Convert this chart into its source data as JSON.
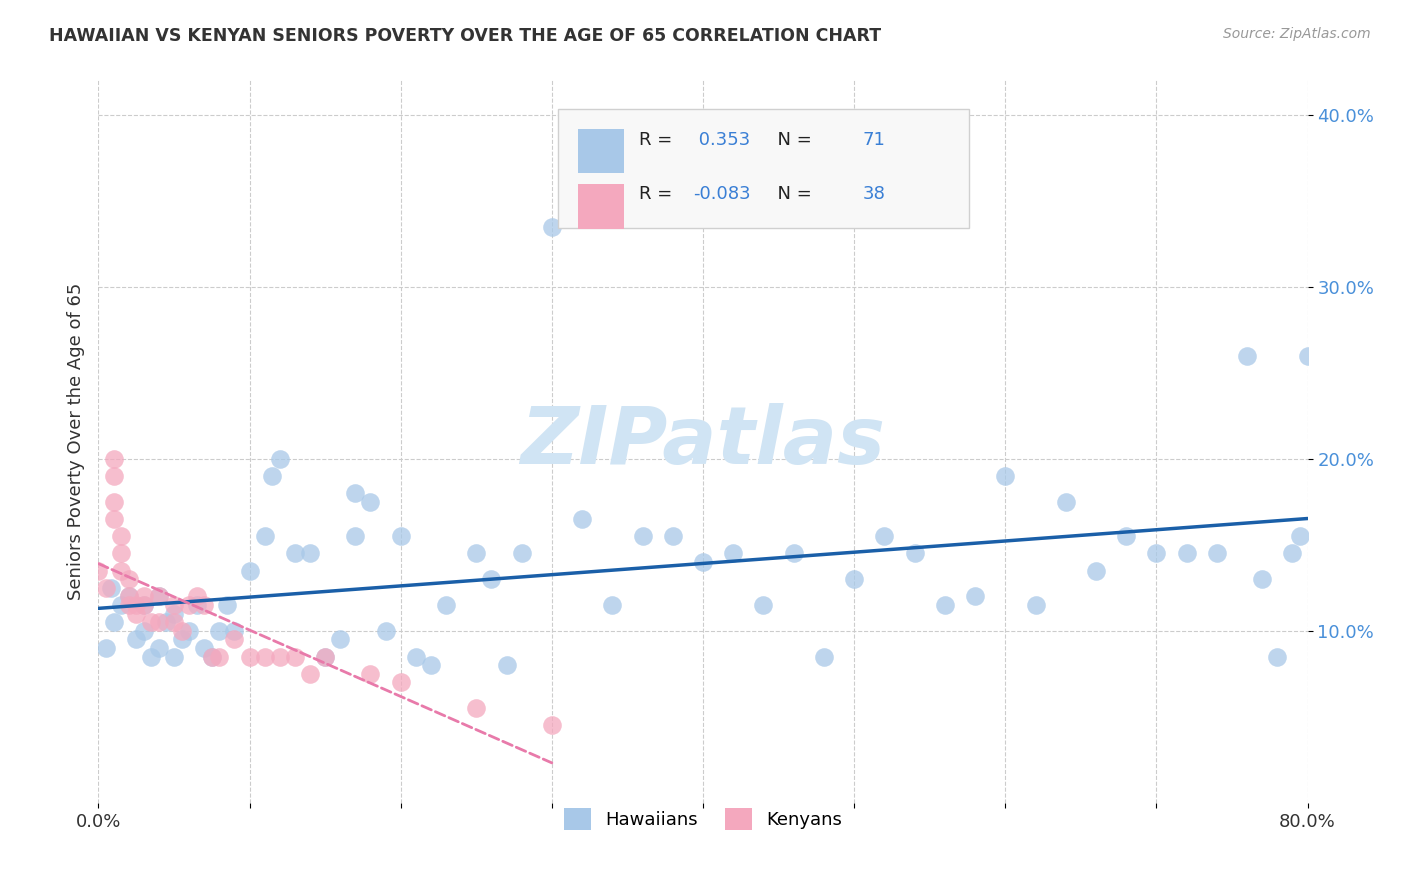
{
  "title": "HAWAIIAN VS KENYAN SENIORS POVERTY OVER THE AGE OF 65 CORRELATION CHART",
  "source": "Source: ZipAtlas.com",
  "ylabel": "Seniors Poverty Over the Age of 65",
  "xlim": [
    0,
    0.8
  ],
  "ylim": [
    0,
    0.42
  ],
  "xtick_positions": [
    0.0,
    0.1,
    0.2,
    0.3,
    0.4,
    0.5,
    0.6,
    0.7,
    0.8
  ],
  "xticklabels": [
    "0.0%",
    "",
    "",
    "",
    "",
    "",
    "",
    "",
    "80.0%"
  ],
  "ytick_positions": [
    0.1,
    0.2,
    0.3,
    0.4
  ],
  "ytick_labels": [
    "10.0%",
    "20.0%",
    "30.0%",
    "40.0%"
  ],
  "R_hawaiian": 0.353,
  "N_hawaiian": 71,
  "R_kenyan": -0.083,
  "N_kenyan": 38,
  "hawaiian_color": "#a8c8e8",
  "kenyan_color": "#f4a8be",
  "trend_hawaiian_color": "#1a5fa8",
  "trend_kenyan_color": "#e87aaa",
  "watermark_text": "ZIPatlas",
  "watermark_color": "#d0e4f4",
  "hawaiians_x": [
    0.005,
    0.008,
    0.01,
    0.015,
    0.02,
    0.025,
    0.03,
    0.03,
    0.035,
    0.04,
    0.04,
    0.045,
    0.05,
    0.05,
    0.055,
    0.06,
    0.065,
    0.07,
    0.075,
    0.08,
    0.085,
    0.09,
    0.1,
    0.11,
    0.115,
    0.12,
    0.13,
    0.14,
    0.15,
    0.16,
    0.17,
    0.17,
    0.18,
    0.19,
    0.2,
    0.21,
    0.22,
    0.23,
    0.25,
    0.26,
    0.27,
    0.28,
    0.3,
    0.32,
    0.34,
    0.36,
    0.38,
    0.4,
    0.42,
    0.44,
    0.46,
    0.48,
    0.5,
    0.52,
    0.54,
    0.56,
    0.58,
    0.6,
    0.62,
    0.64,
    0.66,
    0.68,
    0.7,
    0.72,
    0.74,
    0.76,
    0.77,
    0.78,
    0.79,
    0.795,
    0.8
  ],
  "hawaiians_y": [
    0.09,
    0.125,
    0.105,
    0.115,
    0.12,
    0.095,
    0.1,
    0.115,
    0.085,
    0.09,
    0.12,
    0.105,
    0.085,
    0.11,
    0.095,
    0.1,
    0.115,
    0.09,
    0.085,
    0.1,
    0.115,
    0.1,
    0.135,
    0.155,
    0.19,
    0.2,
    0.145,
    0.145,
    0.085,
    0.095,
    0.18,
    0.155,
    0.175,
    0.1,
    0.155,
    0.085,
    0.08,
    0.115,
    0.145,
    0.13,
    0.08,
    0.145,
    0.335,
    0.165,
    0.115,
    0.155,
    0.155,
    0.14,
    0.145,
    0.115,
    0.145,
    0.085,
    0.13,
    0.155,
    0.145,
    0.115,
    0.12,
    0.19,
    0.115,
    0.175,
    0.135,
    0.155,
    0.145,
    0.145,
    0.145,
    0.26,
    0.13,
    0.085,
    0.145,
    0.155,
    0.26
  ],
  "kenyans_x": [
    0.0,
    0.005,
    0.01,
    0.01,
    0.01,
    0.01,
    0.015,
    0.015,
    0.015,
    0.02,
    0.02,
    0.02,
    0.025,
    0.025,
    0.03,
    0.03,
    0.035,
    0.04,
    0.04,
    0.05,
    0.05,
    0.055,
    0.06,
    0.065,
    0.07,
    0.075,
    0.08,
    0.09,
    0.1,
    0.11,
    0.12,
    0.13,
    0.14,
    0.15,
    0.18,
    0.2,
    0.25,
    0.3
  ],
  "kenyans_y": [
    0.135,
    0.125,
    0.2,
    0.19,
    0.175,
    0.165,
    0.155,
    0.145,
    0.135,
    0.13,
    0.12,
    0.115,
    0.115,
    0.11,
    0.12,
    0.115,
    0.105,
    0.105,
    0.12,
    0.105,
    0.115,
    0.1,
    0.115,
    0.12,
    0.115,
    0.085,
    0.085,
    0.095,
    0.085,
    0.085,
    0.085,
    0.085,
    0.075,
    0.085,
    0.075,
    0.07,
    0.055,
    0.045
  ]
}
